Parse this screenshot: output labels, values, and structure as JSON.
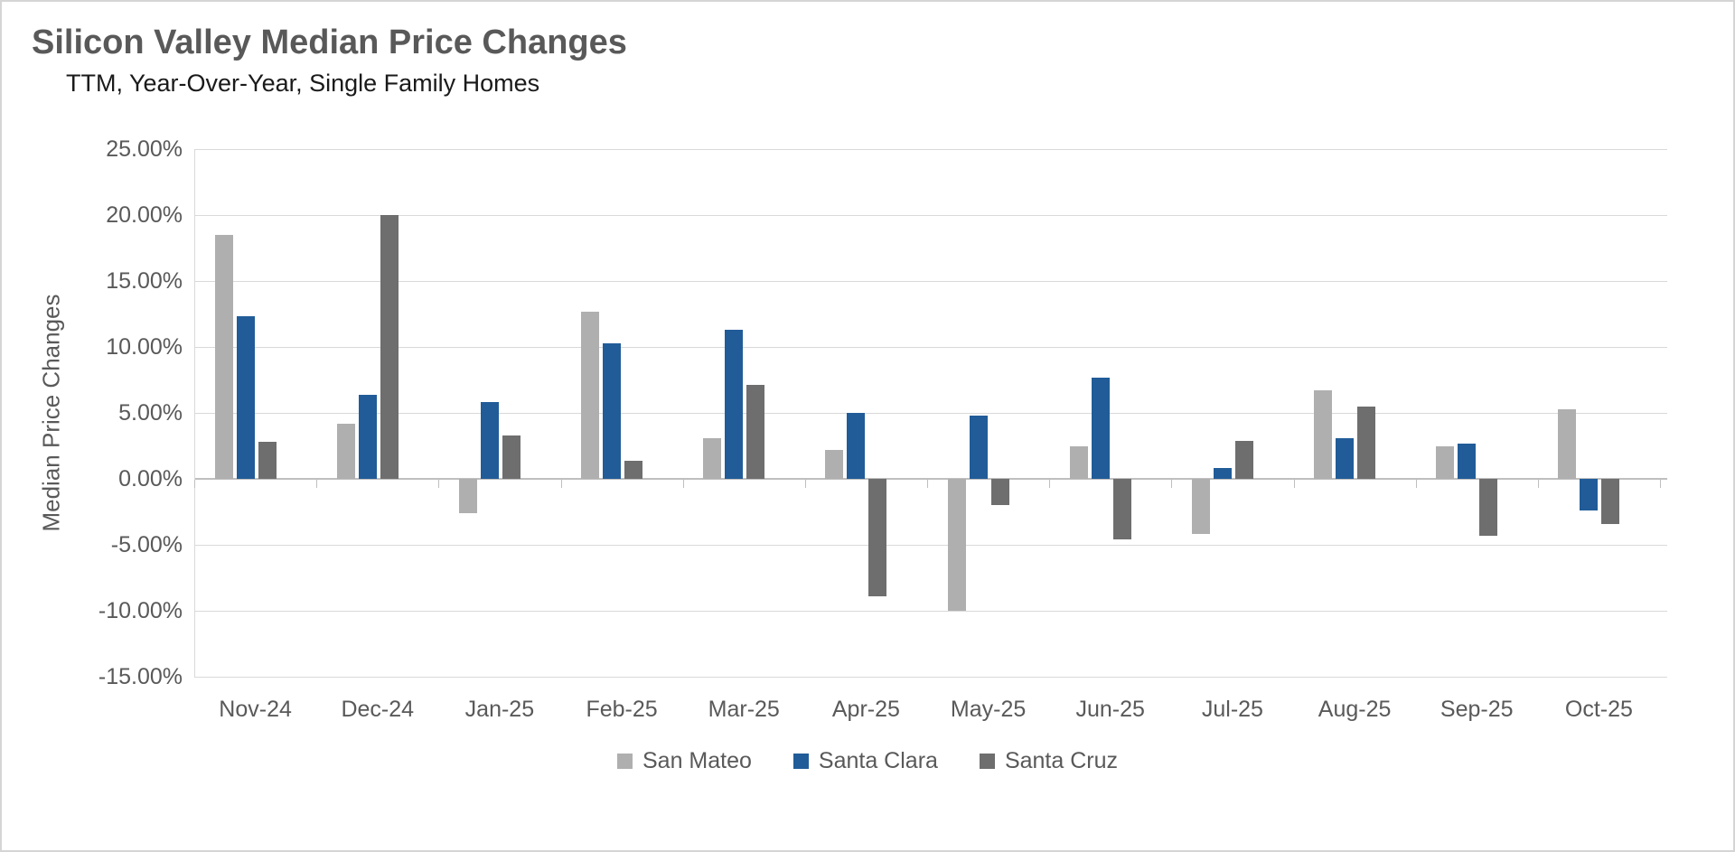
{
  "window": {
    "background": "#ffffff",
    "border_color": "#d5d5d5"
  },
  "header": {
    "title": "Silicon Valley Median Price Changes",
    "subtitle": "TTM, Year-Over-Year, Single Family Homes"
  },
  "chart_data": {
    "type": "bar",
    "title": "Silicon Valley Median Price Changes",
    "subtitle": "TTM, Year-Over-Year, Single Family Homes",
    "xlabel": "",
    "ylabel": "Median Price Changes",
    "unit": "%",
    "categories": [
      "Nov-24",
      "Dec-24",
      "Jan-25",
      "Feb-25",
      "Mar-25",
      "Apr-25",
      "May-25",
      "Jun-25",
      "Jul-25",
      "Aug-25",
      "Sep-25",
      "Oct-25"
    ],
    "series": [
      {
        "name": "San Mateo",
        "color": "#afafaf",
        "values": [
          18.5,
          4.2,
          -2.6,
          12.7,
          3.1,
          2.2,
          -10.0,
          2.5,
          -4.2,
          6.7,
          2.5,
          5.3
        ]
      },
      {
        "name": "Santa Clara",
        "color": "#215c98",
        "values": [
          12.3,
          6.4,
          5.8,
          10.3,
          11.3,
          5.0,
          4.8,
          7.7,
          0.8,
          3.1,
          2.7,
          -2.4
        ]
      },
      {
        "name": "Santa Cruz",
        "color": "#6e6e6e",
        "values": [
          2.8,
          20.0,
          3.3,
          1.4,
          7.1,
          -8.9,
          -2.0,
          -4.6,
          2.9,
          5.5,
          -4.3,
          -3.4
        ]
      }
    ],
    "ylim": [
      -15,
      25
    ],
    "y_step": 5,
    "y_tick_labels": [
      "25.00%",
      "20.00%",
      "15.00%",
      "10.00%",
      "5.00%",
      "0.00%",
      "-5.00%",
      "-10.00%",
      "-15.00%"
    ],
    "grid": true,
    "legend_position": "bottom",
    "colors": {
      "gridline": "#d9d9d9",
      "axis_line": "#bfbfbf",
      "axis_text": "#595959",
      "title_text": "#595959",
      "subtitle_text": "#1a1a1a"
    }
  }
}
